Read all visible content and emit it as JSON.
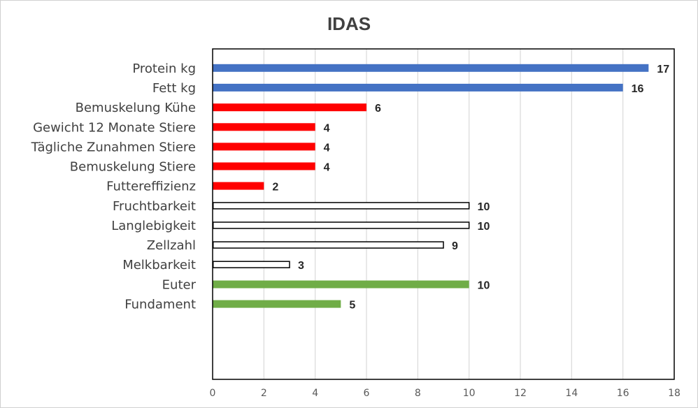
{
  "chart_data": {
    "type": "bar",
    "orientation": "horizontal",
    "title": "IDAS",
    "xlabel": "",
    "ylabel": "",
    "xlim": [
      0,
      18
    ],
    "x_ticks": [
      0,
      2,
      4,
      6,
      8,
      10,
      12,
      14,
      16,
      18
    ],
    "grid": true,
    "data_labels": true,
    "groups": [
      {
        "color": "#4472C4",
        "style": "filled",
        "bars": [
          {
            "label": "Protein kg",
            "value": 17
          },
          {
            "label": "Fett kg",
            "value": 16
          }
        ]
      },
      {
        "color": "#FF0000",
        "style": "filled",
        "bars": [
          {
            "label": "Bemuskelung Kühe",
            "value": 6
          },
          {
            "label": "Gewicht 12 Monate Stiere",
            "value": 4
          },
          {
            "label": "Tägliche Zunahmen Stiere",
            "value": 4
          },
          {
            "label": "Bemuskelung Stiere",
            "value": 4
          },
          {
            "label": "Futtereffizienz",
            "value": 2
          }
        ]
      },
      {
        "color": "#000000",
        "style": "outline",
        "bars": [
          {
            "label": "Fruchtbarkeit",
            "value": 10
          },
          {
            "label": "Langlebigkeit",
            "value": 10
          },
          {
            "label": "Zellzahl",
            "value": 9
          },
          {
            "label": "Melkbarkeit",
            "value": 3
          }
        ]
      },
      {
        "color": "#70AD47",
        "style": "filled",
        "bars": [
          {
            "label": "Euter",
            "value": 10
          },
          {
            "label": "Fundament",
            "value": 5
          }
        ]
      }
    ]
  }
}
